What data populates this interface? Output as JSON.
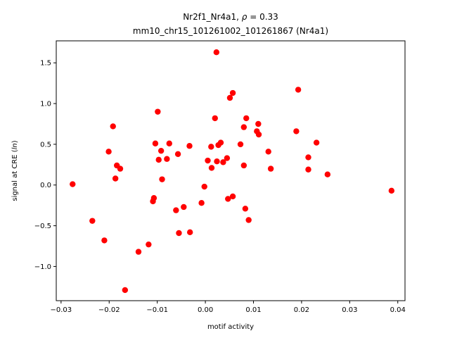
{
  "chart_data": {
    "type": "scatter",
    "title_line1_prefix": "Nr2f1_Nr4a1, ",
    "title_rho_symbol": "ρ",
    "title_rho_value": " = 0.33",
    "title_line2": "mm10_chr15_101261002_101261867 (Nr4a1)",
    "xlabel": "motif activity",
    "ylabel_main": "signal at CRE (",
    "ylabel_italic": "ln",
    "ylabel_end": ")",
    "xlim": [
      -0.031,
      0.0415
    ],
    "ylim": [
      -1.42,
      1.77
    ],
    "xticks": [
      -0.03,
      -0.02,
      -0.01,
      0.0,
      0.01,
      0.02,
      0.03,
      0.04
    ],
    "xtick_labels": [
      "−0.03",
      "−0.02",
      "−0.01",
      "0.00",
      "0.01",
      "0.02",
      "0.03",
      "0.04"
    ],
    "yticks": [
      -1.0,
      -0.5,
      0.0,
      0.5,
      1.0,
      1.5
    ],
    "ytick_labels": [
      "−1.0",
      "−0.5",
      "0.0",
      "0.5",
      "1.0",
      "1.5"
    ],
    "marker_color": "#ff0000",
    "grid": false,
    "points": [
      {
        "x": -0.0276,
        "y": 0.01
      },
      {
        "x": -0.0235,
        "y": -0.44
      },
      {
        "x": -0.021,
        "y": -0.68
      },
      {
        "x": -0.0201,
        "y": 0.41
      },
      {
        "x": -0.0192,
        "y": 0.72
      },
      {
        "x": -0.0187,
        "y": 0.08
      },
      {
        "x": -0.0184,
        "y": 0.24
      },
      {
        "x": -0.0177,
        "y": 0.2
      },
      {
        "x": -0.0167,
        "y": -1.29
      },
      {
        "x": -0.0139,
        "y": -0.82
      },
      {
        "x": -0.0118,
        "y": -0.73
      },
      {
        "x": -0.0109,
        "y": -0.2
      },
      {
        "x": -0.0107,
        "y": -0.16
      },
      {
        "x": -0.0104,
        "y": 0.51
      },
      {
        "x": -0.0099,
        "y": 0.9
      },
      {
        "x": -0.0097,
        "y": 0.31
      },
      {
        "x": -0.0092,
        "y": 0.42
      },
      {
        "x": -0.009,
        "y": 0.07
      },
      {
        "x": -0.008,
        "y": 0.32
      },
      {
        "x": -0.0075,
        "y": 0.51
      },
      {
        "x": -0.0061,
        "y": -0.31
      },
      {
        "x": -0.0057,
        "y": 0.38
      },
      {
        "x": -0.0055,
        "y": -0.59
      },
      {
        "x": -0.0045,
        "y": -0.27
      },
      {
        "x": -0.0033,
        "y": 0.48
      },
      {
        "x": -0.0032,
        "y": -0.58
      },
      {
        "x": -0.0008,
        "y": -0.22
      },
      {
        "x": -0.0002,
        "y": -0.02
      },
      {
        "x": 0.0005,
        "y": 0.3
      },
      {
        "x": 0.0012,
        "y": 0.47
      },
      {
        "x": 0.0013,
        "y": 0.21
      },
      {
        "x": 0.002,
        "y": 0.82
      },
      {
        "x": 0.0023,
        "y": 1.63
      },
      {
        "x": 0.0024,
        "y": 0.29
      },
      {
        "x": 0.0027,
        "y": 0.49
      },
      {
        "x": 0.0032,
        "y": 0.52
      },
      {
        "x": 0.0037,
        "y": 0.28
      },
      {
        "x": 0.0045,
        "y": 0.33
      },
      {
        "x": 0.0047,
        "y": -0.17
      },
      {
        "x": 0.0051,
        "y": 1.07
      },
      {
        "x": 0.0057,
        "y": 1.13
      },
      {
        "x": 0.0057,
        "y": -0.14
      },
      {
        "x": 0.0073,
        "y": 0.5
      },
      {
        "x": 0.008,
        "y": 0.71
      },
      {
        "x": 0.008,
        "y": 0.24
      },
      {
        "x": 0.0083,
        "y": -0.29
      },
      {
        "x": 0.0085,
        "y": 0.82
      },
      {
        "x": 0.009,
        "y": -0.43
      },
      {
        "x": 0.0107,
        "y": 0.66
      },
      {
        "x": 0.011,
        "y": 0.75
      },
      {
        "x": 0.0111,
        "y": 0.62
      },
      {
        "x": 0.0131,
        "y": 0.41
      },
      {
        "x": 0.0136,
        "y": 0.2
      },
      {
        "x": 0.0189,
        "y": 0.66
      },
      {
        "x": 0.0193,
        "y": 1.17
      },
      {
        "x": 0.0214,
        "y": 0.34
      },
      {
        "x": 0.0214,
        "y": 0.19
      },
      {
        "x": 0.0231,
        "y": 0.52
      },
      {
        "x": 0.0254,
        "y": 0.13
      },
      {
        "x": 0.0387,
        "y": -0.07
      }
    ]
  }
}
